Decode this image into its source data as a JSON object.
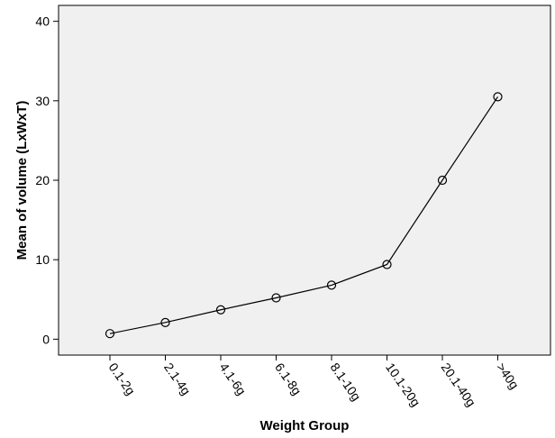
{
  "chart_data": {
    "type": "line",
    "title": "",
    "xlabel": "Weight Group",
    "ylabel": "Mean of volume (LxWxT)",
    "categories": [
      "0.1-2g",
      "2.1-4g",
      "4.1-6g",
      "6.1-8g",
      "8.1-10g",
      "10.1-20g",
      "20.1-40g",
      ">40g"
    ],
    "values": [
      0.7,
      2.1,
      3.7,
      5.2,
      6.8,
      9.4,
      20.0,
      30.5
    ],
    "ylim": [
      -2,
      42
    ],
    "yticks": [
      0,
      10,
      20,
      30,
      40
    ],
    "grid": false,
    "marker": "open-circle",
    "colors": {
      "plot_background": "#f0f0f0",
      "line": "#000000",
      "axis": "#000000"
    }
  }
}
